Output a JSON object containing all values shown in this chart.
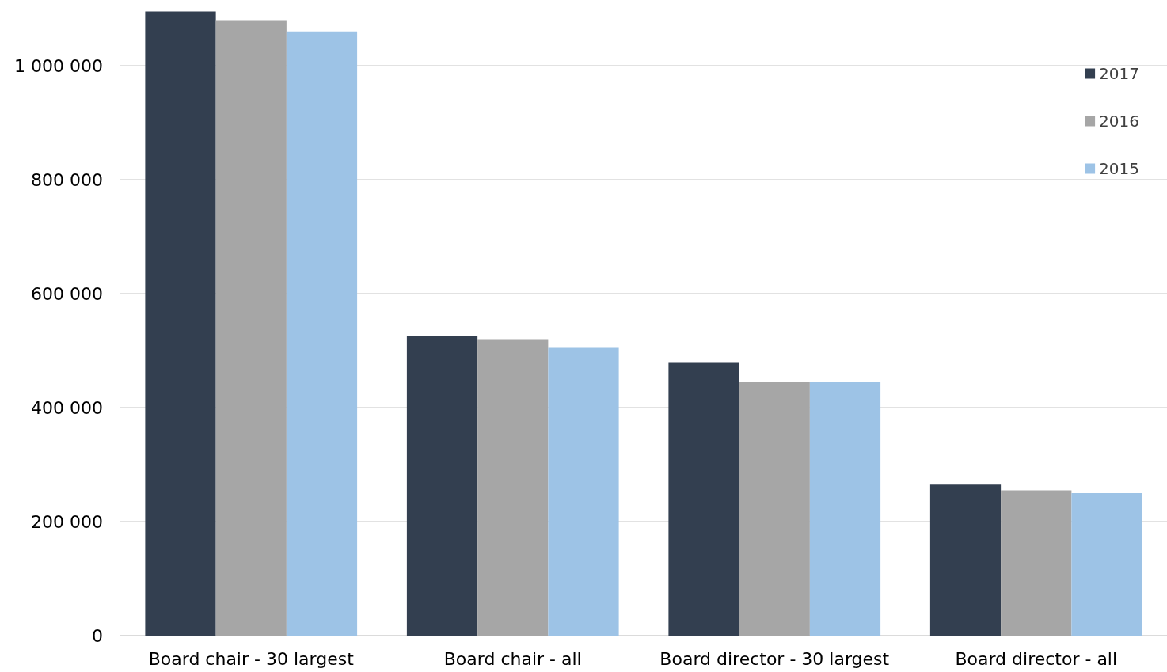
{
  "chart_data": {
    "type": "bar",
    "categories": [
      "Board chair - 30 largest",
      "Board chair - all",
      "Board director - 30 largest",
      "Board director - all"
    ],
    "series": [
      {
        "name": "2017",
        "color": "#333f50",
        "values": [
          1095000,
          525000,
          480000,
          265000
        ]
      },
      {
        "name": "2016",
        "color": "#a6a6a6",
        "values": [
          1080000,
          520000,
          445000,
          255000
        ]
      },
      {
        "name": "2015",
        "color": "#9dc3e6",
        "values": [
          1060000,
          505000,
          445000,
          250000
        ]
      }
    ],
    "ylim": [
      0,
      1100000
    ],
    "yticks": [
      {
        "value": 0,
        "label": "0"
      },
      {
        "value": 200000,
        "label": "200 000"
      },
      {
        "value": 400000,
        "label": "400 000"
      },
      {
        "value": 600000,
        "label": "600 000"
      },
      {
        "value": 800000,
        "label": "800 000"
      },
      {
        "value": 1000000,
        "label": "1 000 000"
      }
    ],
    "grid": "y",
    "legend": "top right"
  }
}
